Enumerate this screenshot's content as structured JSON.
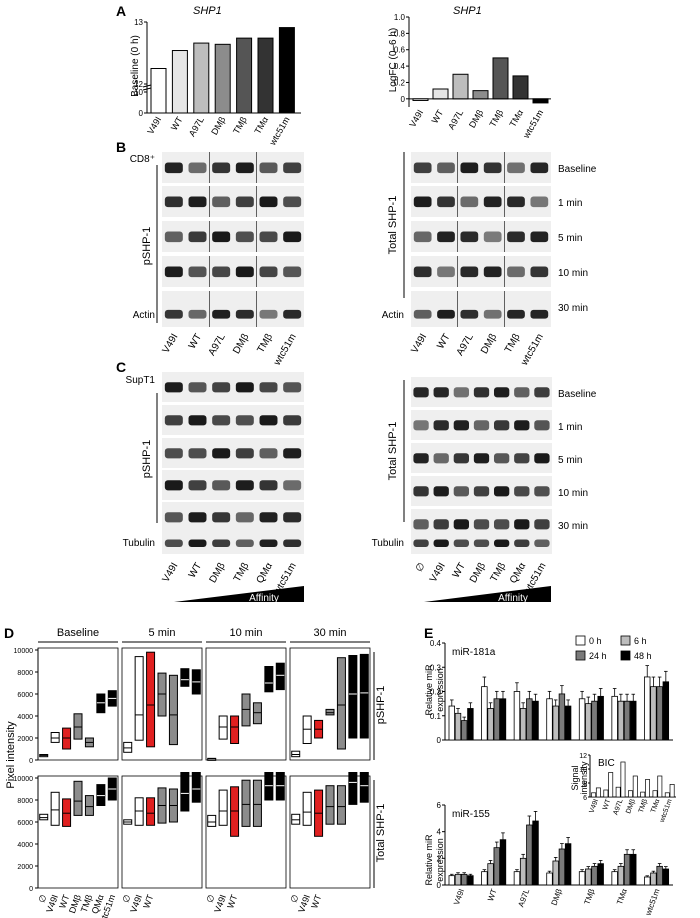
{
  "panel_labels": [
    "A",
    "B",
    "C",
    "D",
    "E"
  ],
  "colors": {
    "black": "#000000",
    "red": "#e02020",
    "light_gray": "#bdbdbd",
    "mid_gray": "#8c8c8c",
    "dark_gray": "#555555",
    "blot_bg": "#efefef",
    "band": "#1a1a1a"
  },
  "blots": {
    "b_left_title": "CD8⁺",
    "b_left_group": "pSHP-1",
    "b_left_actin": "Actin",
    "b_left_lanes": [
      "V49I",
      "WT",
      "A97L",
      "DMβ",
      "TMβ",
      "wtc51m"
    ],
    "b_right_group": "Total SHP-1",
    "b_right_actin": "Actin",
    "b_right_lanes": [
      "V49I",
      "WT",
      "A97L",
      "DMβ",
      "TMβ",
      "wtc51m"
    ],
    "b_timepoints": [
      "Baseline",
      "1 min",
      "5 min",
      "10 min",
      "30 min"
    ],
    "c_left_title": "SupT1",
    "c_left_group": "pSHP-1",
    "c_left_tubulin": "Tubulin",
    "c_left_lanes": [
      "V49I",
      "WT",
      "DMβ",
      "TMβ",
      "QMα",
      "wtc51m"
    ],
    "c_right_group": "Total SHP-1",
    "c_right_tubulin": "Tubulin",
    "c_right_lanes": [
      "∅",
      "V49I",
      "WT",
      "DMβ",
      "TMβ",
      "QMα",
      "wtc51m"
    ],
    "c_timepoints": [
      "Baseline",
      "1 min",
      "5 min",
      "10 min",
      "30 min"
    ],
    "affinity_label": "Affinity"
  },
  "chart_data": [
    {
      "id": "A-left",
      "type": "bar",
      "title": "SHP1",
      "ylabel": "Baseline (0 h)",
      "categories": [
        "V49I",
        "WT",
        "A97L",
        "DMβ",
        "TMβ",
        "TMα",
        "wtc51m"
      ],
      "values": [
        12.25,
        12.54,
        12.66,
        12.64,
        12.74,
        12.74,
        12.91
      ],
      "fill_colors": [
        "#ffffff",
        "#e6e6e6",
        "#bdbdbd",
        "#8c8c8c",
        "#555555",
        "#333333",
        "#000000"
      ],
      "yticks": [
        "13",
        "12",
        "10",
        "0"
      ],
      "yaxis": "broken"
    },
    {
      "id": "A-right",
      "type": "bar",
      "title": "SHP1",
      "ylabel": "LogFC (0–6 h)",
      "categories": [
        "V49I",
        "WT",
        "A97L",
        "DMβ",
        "TMβ",
        "TMα",
        "wtc51m"
      ],
      "values": [
        -0.02,
        0.12,
        0.3,
        0.1,
        0.5,
        0.28,
        -0.05
      ],
      "fill_colors": [
        "#ffffff",
        "#e6e6e6",
        "#bdbdbd",
        "#8c8c8c",
        "#555555",
        "#333333",
        "#000000"
      ],
      "ylim": [
        -0.1,
        1.0
      ],
      "yticks": [
        "1.0",
        "0.8",
        "0.6",
        "0.4",
        "0.2",
        "0"
      ]
    },
    {
      "id": "D",
      "type": "box",
      "ylabel": "Pixel intensity",
      "groups": [
        "Baseline",
        "5 min",
        "10 min",
        "30 min"
      ],
      "rows": [
        "pSHP-1",
        "Total SHP-1"
      ],
      "categories": [
        "∅",
        "V49I",
        "WT",
        "DMβ",
        "TMβ",
        "QMα",
        "wtc51m"
      ],
      "fill_colors": [
        "#ffffff",
        "#ffffff",
        "#e02020",
        "#8c8c8c",
        "#8c8c8c",
        "#000000",
        "#000000"
      ],
      "ylim": [
        0,
        10000
      ],
      "yticks": [
        "10000",
        "8000",
        "6000",
        "4000",
        "2000",
        "0"
      ],
      "pSHP-1": {
        "Baseline": [
          [
            300,
            500,
            400
          ],
          [
            1600,
            2500,
            2000
          ],
          [
            1000,
            2900,
            2000
          ],
          [
            1900,
            4200,
            3000
          ],
          [
            1200,
            2000,
            1600
          ],
          [
            4300,
            6000,
            5200
          ],
          [
            4900,
            6300,
            5600
          ]
        ],
        "5 min": [
          [
            700,
            1600,
            1100
          ],
          [
            1800,
            9400,
            4100
          ],
          [
            1200,
            9800,
            5000
          ],
          [
            4000,
            7900,
            6000
          ],
          [
            1400,
            7700,
            4100
          ],
          [
            6700,
            8300,
            7300
          ],
          [
            6000,
            8200,
            7100
          ]
        ],
        "10 min": [
          [
            50,
            150,
            100
          ],
          [
            1900,
            4000,
            3000
          ],
          [
            1500,
            4000,
            3000
          ],
          [
            3100,
            6000,
            4600
          ],
          [
            3300,
            5200,
            4300
          ],
          [
            6200,
            8500,
            7000
          ],
          [
            6400,
            8800,
            7700
          ]
        ],
        "30 min": [
          [
            300,
            800,
            500
          ],
          [
            1500,
            4000,
            2800
          ],
          [
            2000,
            3600,
            2800
          ],
          [
            4100,
            4600,
            4300
          ],
          [
            1000,
            9300,
            5000
          ],
          [
            2000,
            9500,
            6000
          ],
          [
            2000,
            9600,
            6100
          ]
        ]
      },
      "Total SHP-1": {
        "Baseline": [
          [
            6200,
            6700,
            6400
          ],
          [
            5700,
            8700,
            7100
          ],
          [
            5600,
            8100,
            6800
          ],
          [
            6600,
            9700,
            7900
          ],
          [
            6600,
            8400,
            7400
          ],
          [
            7500,
            9400,
            8400
          ],
          [
            8000,
            10000,
            9000
          ]
        ],
        "5 min": [
          [
            5800,
            6200,
            6000
          ],
          [
            5700,
            8200,
            7000
          ],
          [
            5700,
            8200,
            6800
          ],
          [
            5900,
            9100,
            7500
          ],
          [
            6000,
            9000,
            7500
          ],
          [
            7000,
            10500,
            8600
          ],
          [
            7800,
            10500,
            9000
          ]
        ],
        "10 min": [
          [
            5600,
            6600,
            6000
          ],
          [
            5700,
            8900,
            7000
          ],
          [
            4700,
            9200,
            7000
          ],
          [
            5600,
            9800,
            7600
          ],
          [
            5600,
            9800,
            7600
          ],
          [
            8000,
            10800,
            9300
          ],
          [
            8000,
            10500,
            9300
          ]
        ],
        "30 min": [
          [
            5800,
            6700,
            6200
          ],
          [
            5700,
            8700,
            6900
          ],
          [
            4700,
            8900,
            6800
          ],
          [
            5800,
            9300,
            7400
          ],
          [
            5800,
            9300,
            7400
          ],
          [
            7600,
            11400,
            9600
          ],
          [
            7800,
            11000,
            9300
          ]
        ]
      }
    },
    {
      "id": "E-top",
      "type": "bar",
      "title": "miR-181a",
      "ylabel": "Relative miR expression",
      "categories": [
        "V49I",
        "WT",
        "A97L",
        "DMβ",
        "TMβ",
        "TMα",
        "wtc51m"
      ],
      "series": [
        {
          "name": "0 h",
          "values": [
            0.14,
            0.22,
            0.2,
            0.17,
            0.17,
            0.18,
            0.26
          ]
        },
        {
          "name": "6 h",
          "values": [
            0.11,
            0.13,
            0.13,
            0.14,
            0.15,
            0.16,
            0.22
          ]
        },
        {
          "name": "24 h",
          "values": [
            0.08,
            0.17,
            0.17,
            0.19,
            0.16,
            0.16,
            0.22
          ]
        },
        {
          "name": "48 h",
          "values": [
            0.13,
            0.17,
            0.16,
            0.14,
            0.18,
            0.16,
            0.24
          ]
        }
      ],
      "series_colors": [
        "#ffffff",
        "#bdbdbd",
        "#7a7a7a",
        "#000000"
      ],
      "ylim": [
        0,
        0.4
      ],
      "yticks": [
        "0.4",
        "0.3",
        "0.2",
        "0.1",
        "0"
      ]
    },
    {
      "id": "E-inset",
      "type": "bar",
      "title": "BIC",
      "ylabel": "Signal intensity",
      "categories": [
        "V49I",
        "WT",
        "A97L",
        "DMβ",
        "TMβ",
        "TMα",
        "wtc51m"
      ],
      "series": [
        {
          "name": "0 h",
          "values": [
            6.6,
            7.0,
            7.4,
            6.9,
            6.7,
            6.9,
            6.6
          ]
        },
        {
          "name": "6 h",
          "values": [
            7.3,
            9.5,
            11.0,
            9.0,
            8.5,
            9.0,
            7.8
          ]
        }
      ],
      "ylim": [
        6,
        12
      ],
      "yticks": [
        "12",
        "10",
        "8",
        "6"
      ]
    },
    {
      "id": "E-bottom",
      "type": "bar",
      "title": "miR-155",
      "ylabel": "Relative miR expression",
      "categories": [
        "V49I",
        "WT",
        "A97L",
        "DMβ",
        "TMβ",
        "TMα",
        "wtc51m"
      ],
      "series": [
        {
          "name": "0 h",
          "values": [
            0.7,
            1.0,
            1.0,
            0.9,
            1.0,
            1.0,
            0.6
          ]
        },
        {
          "name": "6 h",
          "values": [
            0.8,
            1.6,
            2.0,
            1.8,
            1.2,
            1.4,
            0.9
          ]
        },
        {
          "name": "24 h",
          "values": [
            0.8,
            2.8,
            4.5,
            2.7,
            1.4,
            2.3,
            1.4
          ]
        },
        {
          "name": "48 h",
          "values": [
            0.7,
            3.4,
            4.8,
            3.1,
            1.6,
            2.3,
            1.2
          ]
        }
      ],
      "series_colors": [
        "#ffffff",
        "#bdbdbd",
        "#7a7a7a",
        "#000000"
      ],
      "ylim": [
        0,
        6
      ],
      "yticks": [
        "6",
        "4",
        "2",
        "0"
      ]
    }
  ]
}
